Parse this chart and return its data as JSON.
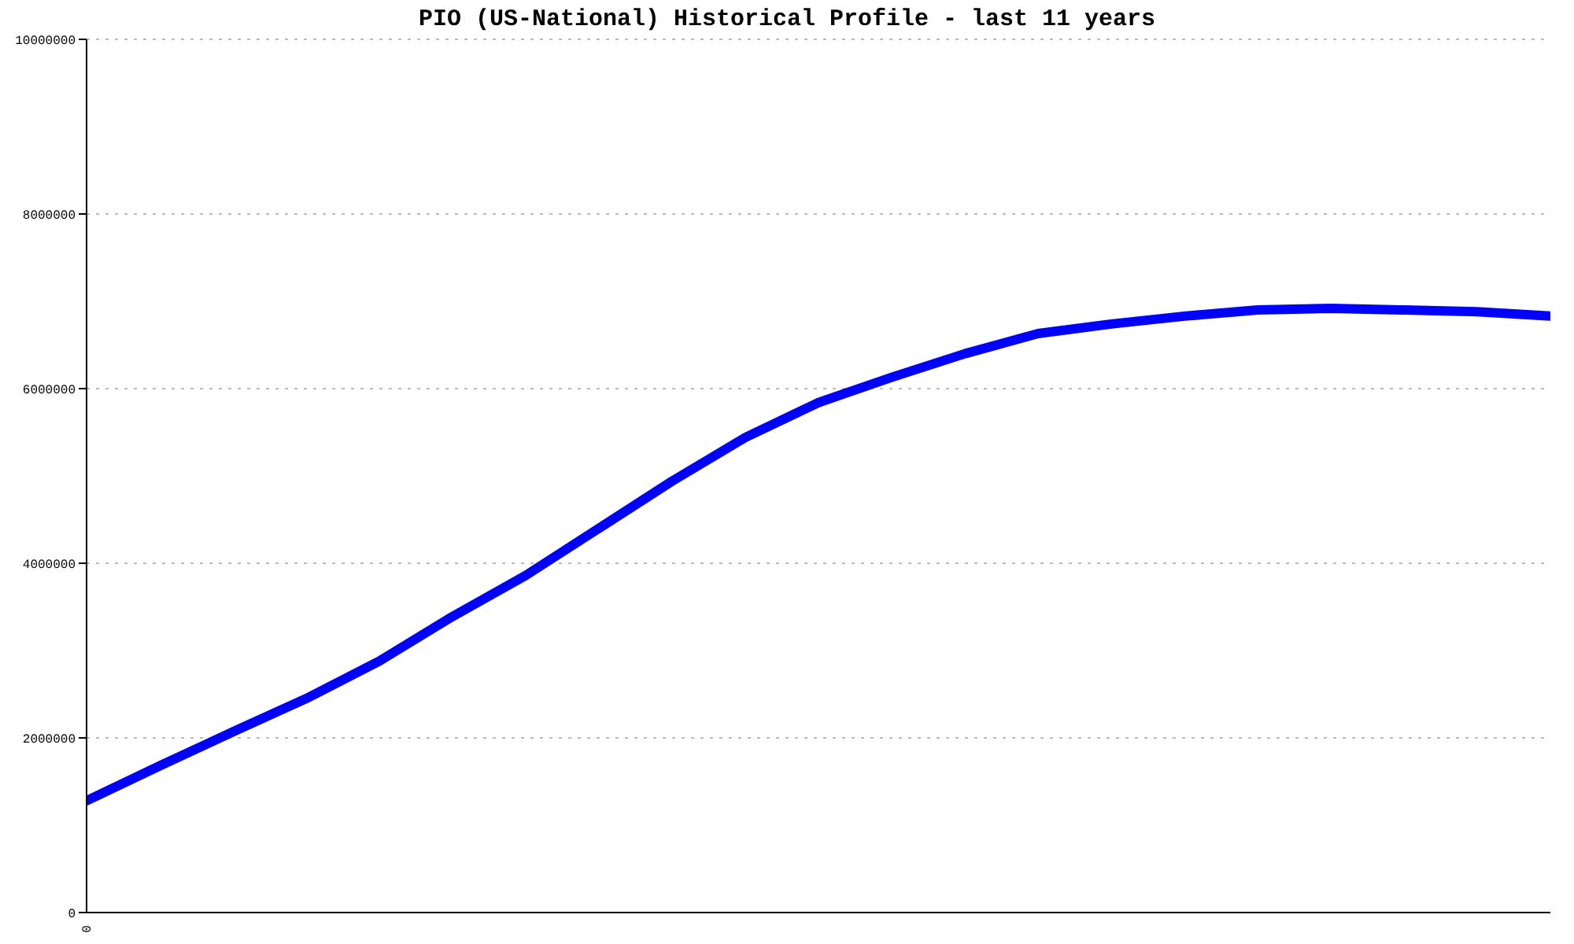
{
  "chart_data": {
    "type": "line",
    "title": "PIO (US-National) Historical Profile - last 11 years",
    "categories": [
      "0",
      null,
      null,
      null,
      null,
      null,
      null,
      null,
      null,
      null,
      null,
      null,
      null,
      null,
      null,
      null,
      null,
      null,
      null,
      null,
      null
    ],
    "series": [
      {
        "color": "#0000ff",
        "values": [
          1280000,
          1680000,
          2070000,
          2450000,
          2880000,
          3390000,
          3860000,
          4400000,
          4940000,
          5440000,
          5840000,
          6130000,
          6400000,
          6630000,
          6740000,
          6830000,
          6900000,
          6920000,
          6900000,
          6880000,
          6830000
        ]
      }
    ],
    "ylim": [
      0,
      10000000
    ],
    "yticks": [
      0,
      2000000,
      4000000,
      6000000,
      8000000,
      10000000
    ],
    "grid": "y"
  }
}
